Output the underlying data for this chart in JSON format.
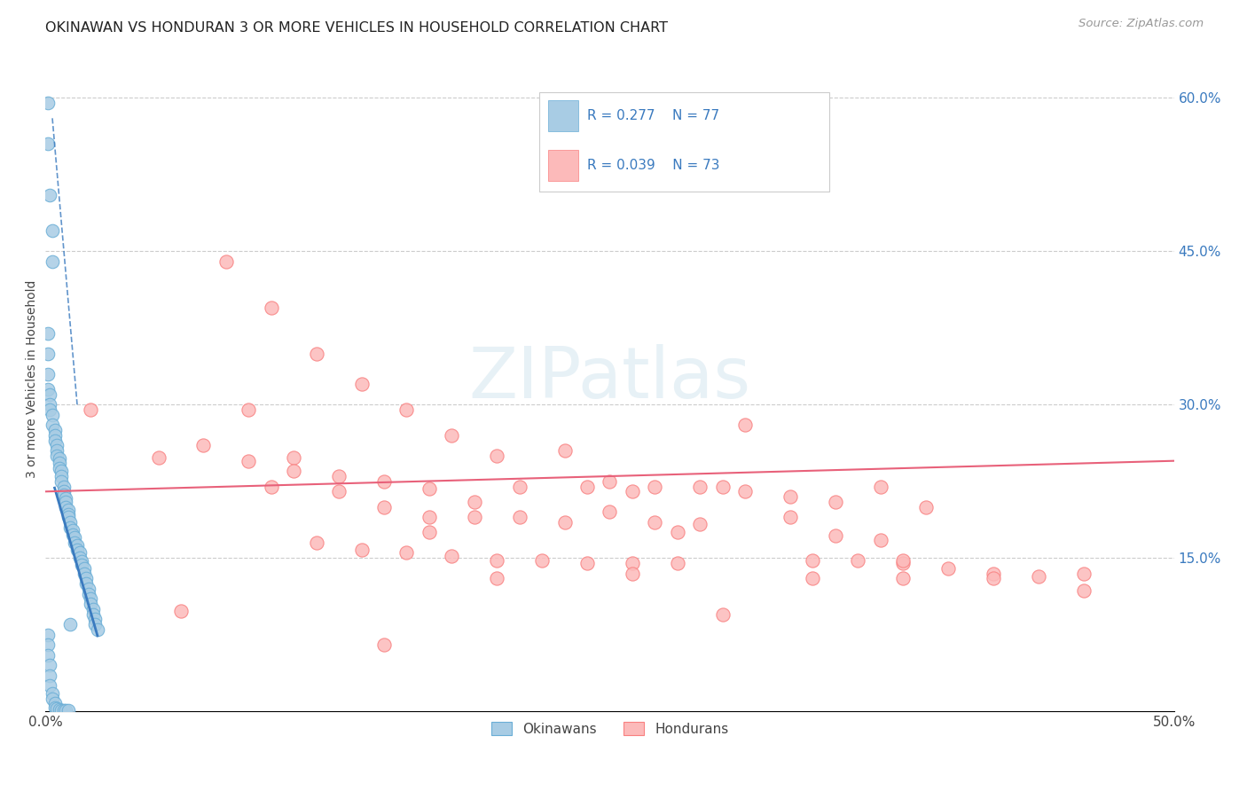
{
  "title": "OKINAWAN VS HONDURAN 3 OR MORE VEHICLES IN HOUSEHOLD CORRELATION CHART",
  "source": "Source: ZipAtlas.com",
  "ylabel": "3 or more Vehicles in Household",
  "xmin": 0.0,
  "xmax": 0.5,
  "ymin": 0.0,
  "ymax": 0.65,
  "okinawan_color": "#a8cce4",
  "okinawan_edge_color": "#6aaed6",
  "honduran_color": "#fcbaba",
  "honduran_edge_color": "#f98080",
  "okinawan_line_color": "#3a7abf",
  "honduran_line_color": "#e8617a",
  "legend_text_color": "#3a7abf",
  "R_okinawan": "0.277",
  "N_okinawan": "77",
  "R_honduran": "0.039",
  "N_honduran": "73",
  "watermark": "ZIPatlas",
  "okinawan_x": [
    0.001,
    0.001,
    0.002,
    0.003,
    0.003,
    0.001,
    0.001,
    0.001,
    0.001,
    0.002,
    0.002,
    0.002,
    0.003,
    0.003,
    0.004,
    0.004,
    0.004,
    0.005,
    0.005,
    0.005,
    0.006,
    0.006,
    0.006,
    0.007,
    0.007,
    0.007,
    0.008,
    0.008,
    0.008,
    0.009,
    0.009,
    0.009,
    0.01,
    0.01,
    0.01,
    0.011,
    0.011,
    0.012,
    0.012,
    0.013,
    0.013,
    0.014,
    0.014,
    0.015,
    0.015,
    0.016,
    0.016,
    0.017,
    0.017,
    0.018,
    0.018,
    0.019,
    0.019,
    0.02,
    0.02,
    0.021,
    0.021,
    0.022,
    0.022,
    0.023,
    0.001,
    0.001,
    0.001,
    0.002,
    0.002,
    0.002,
    0.003,
    0.003,
    0.004,
    0.004,
    0.005,
    0.006,
    0.007,
    0.008,
    0.009,
    0.01,
    0.011
  ],
  "okinawan_y": [
    0.595,
    0.555,
    0.505,
    0.47,
    0.44,
    0.37,
    0.35,
    0.33,
    0.315,
    0.31,
    0.3,
    0.295,
    0.29,
    0.28,
    0.275,
    0.27,
    0.265,
    0.26,
    0.255,
    0.25,
    0.247,
    0.243,
    0.238,
    0.235,
    0.23,
    0.225,
    0.22,
    0.215,
    0.212,
    0.208,
    0.205,
    0.2,
    0.197,
    0.193,
    0.19,
    0.185,
    0.18,
    0.177,
    0.173,
    0.17,
    0.165,
    0.162,
    0.158,
    0.155,
    0.15,
    0.147,
    0.143,
    0.14,
    0.135,
    0.13,
    0.125,
    0.12,
    0.115,
    0.11,
    0.105,
    0.1,
    0.095,
    0.09,
    0.085,
    0.08,
    0.075,
    0.065,
    0.055,
    0.045,
    0.035,
    0.025,
    0.018,
    0.012,
    0.008,
    0.004,
    0.003,
    0.002,
    0.001,
    0.001,
    0.001,
    0.001,
    0.085
  ],
  "honduran_x": [
    0.02,
    0.06,
    0.08,
    0.1,
    0.12,
    0.14,
    0.16,
    0.18,
    0.2,
    0.09,
    0.11,
    0.13,
    0.15,
    0.17,
    0.19,
    0.21,
    0.23,
    0.25,
    0.27,
    0.29,
    0.31,
    0.33,
    0.35,
    0.37,
    0.39,
    0.05,
    0.07,
    0.09,
    0.11,
    0.13,
    0.15,
    0.17,
    0.19,
    0.21,
    0.23,
    0.25,
    0.27,
    0.29,
    0.31,
    0.33,
    0.35,
    0.37,
    0.24,
    0.26,
    0.28,
    0.3,
    0.12,
    0.14,
    0.16,
    0.18,
    0.2,
    0.22,
    0.24,
    0.26,
    0.28,
    0.34,
    0.36,
    0.38,
    0.4,
    0.42,
    0.46,
    0.2,
    0.15,
    0.38,
    0.44,
    0.1,
    0.17,
    0.26,
    0.3,
    0.34,
    0.38,
    0.42,
    0.46
  ],
  "honduran_y": [
    0.295,
    0.098,
    0.44,
    0.395,
    0.35,
    0.32,
    0.295,
    0.27,
    0.25,
    0.295,
    0.248,
    0.23,
    0.225,
    0.218,
    0.205,
    0.22,
    0.255,
    0.225,
    0.22,
    0.22,
    0.215,
    0.21,
    0.205,
    0.22,
    0.2,
    0.248,
    0.26,
    0.245,
    0.235,
    0.215,
    0.2,
    0.19,
    0.19,
    0.19,
    0.185,
    0.195,
    0.185,
    0.183,
    0.28,
    0.19,
    0.172,
    0.168,
    0.22,
    0.215,
    0.175,
    0.22,
    0.165,
    0.158,
    0.155,
    0.152,
    0.148,
    0.148,
    0.145,
    0.145,
    0.145,
    0.148,
    0.148,
    0.145,
    0.14,
    0.135,
    0.118,
    0.13,
    0.065,
    0.148,
    0.132,
    0.22,
    0.175,
    0.135,
    0.095,
    0.13,
    0.13,
    0.13,
    0.135
  ]
}
